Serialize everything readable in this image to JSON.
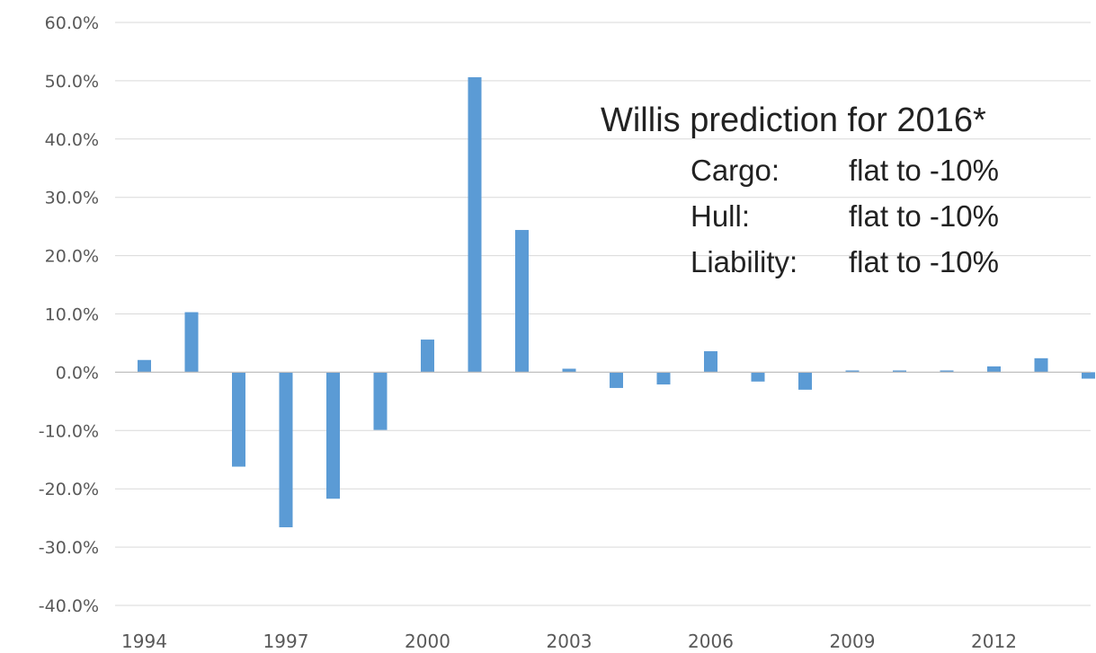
{
  "chart_data": {
    "type": "bar",
    "categories": [
      "1994",
      "1995",
      "1996",
      "1997",
      "1998",
      "1999",
      "2000",
      "2001",
      "2002",
      "2003",
      "2004",
      "2005",
      "2006",
      "2007",
      "2008",
      "2009",
      "2010",
      "2011",
      "2012",
      "2013",
      "2014"
    ],
    "values": [
      2.1,
      10.3,
      -16.2,
      -26.6,
      -21.7,
      -9.9,
      5.6,
      50.6,
      24.4,
      0.6,
      -2.7,
      -2.1,
      3.6,
      -1.6,
      -3.0,
      0.3,
      0.3,
      0.3,
      1.0,
      2.4,
      -1.1
    ],
    "x_tick_labels": [
      "1994",
      "1997",
      "2000",
      "2003",
      "2006",
      "2009",
      "2012"
    ],
    "y_tick_labels": [
      "60.0%",
      "50.0%",
      "40.0%",
      "30.0%",
      "20.0%",
      "10.0%",
      "0.0%",
      "-10.0%",
      "-20.0%",
      "-30.0%",
      "-40.0%"
    ],
    "ylim": [
      -40,
      60
    ],
    "y_unit": "percent",
    "grid": "horizontal",
    "bar_color": "#5b9bd5",
    "title": "",
    "xlabel": "",
    "ylabel": "",
    "annotation": {
      "title": "Willis prediction for 2016*",
      "rows": [
        {
          "label": "Cargo:",
          "value": "flat to -10%"
        },
        {
          "label": "Hull:",
          "value": "flat to -10%"
        },
        {
          "label": "Liability:",
          "value": "flat to -10%"
        }
      ]
    }
  }
}
